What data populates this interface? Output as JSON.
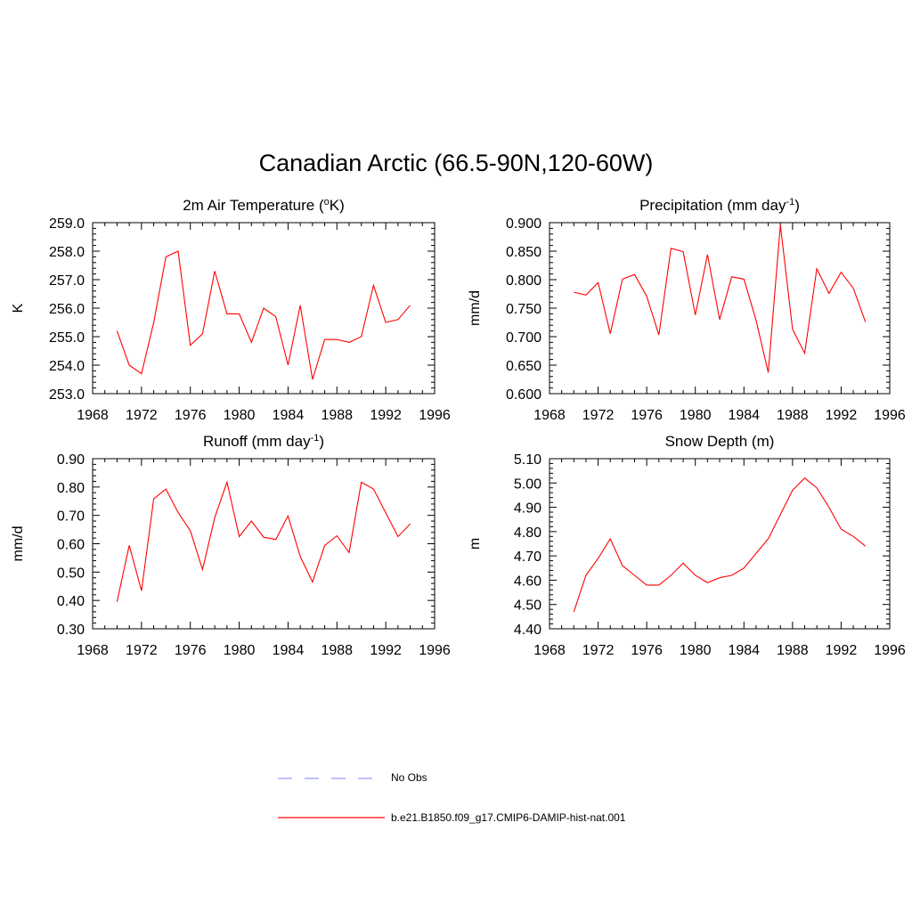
{
  "figure": {
    "title": "Canadian Arctic (66.5-90N,120-60W)"
  },
  "legend": {
    "items": [
      {
        "label": "No Obs",
        "color": "#9999ff",
        "style": "dashed"
      },
      {
        "label": "b.e21.B1850.f09_g17.CMIP6-DAMIP-hist-nat.001",
        "color": "#ff0000",
        "style": "solid"
      }
    ]
  },
  "chart_data": [
    {
      "type": "line",
      "title": "2m Air Temperature (°K)",
      "title_parts": [
        "2m Air Temperature (",
        "o",
        "K)"
      ],
      "xlabel": "",
      "ylabel": "K",
      "xlim": [
        1968,
        1996
      ],
      "ylim": [
        253.0,
        259.0
      ],
      "x_ticks": [
        "1968",
        "1972",
        "1976",
        "1980",
        "1984",
        "1988",
        "1992",
        "1996"
      ],
      "y_ticks": [
        "253.0",
        "254.0",
        "255.0",
        "256.0",
        "257.0",
        "258.0",
        "259.0"
      ],
      "x": [
        1970,
        1971,
        1972,
        1973,
        1974,
        1975,
        1976,
        1977,
        1978,
        1979,
        1980,
        1981,
        1982,
        1983,
        1984,
        1985,
        1986,
        1987,
        1988,
        1989,
        1990,
        1991,
        1992,
        1993,
        1994
      ],
      "series": [
        {
          "color": "#ff0000",
          "values": [
            255.2,
            254.0,
            253.7,
            255.5,
            257.8,
            258.0,
            254.7,
            255.1,
            257.3,
            255.8,
            255.8,
            254.8,
            256.0,
            255.7,
            254.0,
            256.1,
            253.5,
            254.9,
            254.9,
            254.8,
            255.0,
            256.8,
            255.5,
            255.6,
            256.1
          ]
        }
      ]
    },
    {
      "type": "line",
      "title": "Precipitation (mm day-1)",
      "title_parts": [
        "Precipitation (mm day",
        "-1",
        ")"
      ],
      "xlabel": "",
      "ylabel": "mm/d",
      "xlim": [
        1968,
        1996
      ],
      "ylim": [
        0.6,
        0.9
      ],
      "x_ticks": [
        "1968",
        "1972",
        "1976",
        "1980",
        "1984",
        "1988",
        "1992",
        "1996"
      ],
      "y_ticks": [
        "0.600",
        "0.650",
        "0.700",
        "0.750",
        "0.800",
        "0.850",
        "0.900"
      ],
      "x": [
        1970,
        1971,
        1972,
        1973,
        1974,
        1975,
        1976,
        1977,
        1978,
        1979,
        1980,
        1981,
        1982,
        1983,
        1984,
        1985,
        1986,
        1987,
        1988,
        1989,
        1990,
        1991,
        1992,
        1993,
        1994
      ],
      "series": [
        {
          "color": "#ff0000",
          "values": [
            0.778,
            0.773,
            0.795,
            0.705,
            0.801,
            0.809,
            0.771,
            0.703,
            0.855,
            0.849,
            0.738,
            0.844,
            0.73,
            0.805,
            0.801,
            0.729,
            0.637,
            0.896,
            0.713,
            0.671,
            0.819,
            0.776,
            0.813,
            0.785,
            0.726
          ]
        }
      ]
    },
    {
      "type": "line",
      "title": "Runoff (mm day-1)",
      "title_parts": [
        "Runoff (mm day",
        "-1",
        ")"
      ],
      "xlabel": "",
      "ylabel": "mm/d",
      "xlim": [
        1968,
        1996
      ],
      "ylim": [
        0.3,
        0.9
      ],
      "x_ticks": [
        "1968",
        "1972",
        "1976",
        "1980",
        "1984",
        "1988",
        "1992",
        "1996"
      ],
      "y_ticks": [
        "0.30",
        "0.40",
        "0.50",
        "0.60",
        "0.70",
        "0.80",
        "0.90"
      ],
      "x": [
        1970,
        1971,
        1972,
        1973,
        1974,
        1975,
        1976,
        1977,
        1978,
        1979,
        1980,
        1981,
        1982,
        1983,
        1984,
        1985,
        1986,
        1987,
        1988,
        1989,
        1990,
        1991,
        1992,
        1993,
        1994
      ],
      "series": [
        {
          "color": "#ff0000",
          "values": [
            0.395,
            0.594,
            0.434,
            0.758,
            0.793,
            0.71,
            0.646,
            0.509,
            0.692,
            0.817,
            0.625,
            0.68,
            0.623,
            0.615,
            0.698,
            0.555,
            0.465,
            0.594,
            0.628,
            0.569,
            0.817,
            0.793,
            0.709,
            0.625,
            0.67
          ]
        }
      ]
    },
    {
      "type": "line",
      "title": "Snow Depth (m)",
      "title_parts": [
        "Snow Depth (m)"
      ],
      "xlabel": "",
      "ylabel": "m",
      "xlim": [
        1968,
        1996
      ],
      "ylim": [
        4.4,
        5.1
      ],
      "x_ticks": [
        "1968",
        "1972",
        "1976",
        "1980",
        "1984",
        "1988",
        "1992",
        "1996"
      ],
      "y_ticks": [
        "4.40",
        "4.50",
        "4.60",
        "4.70",
        "4.80",
        "4.90",
        "5.00",
        "5.10"
      ],
      "x": [
        1970,
        1971,
        1972,
        1973,
        1974,
        1975,
        1976,
        1977,
        1978,
        1979,
        1980,
        1981,
        1982,
        1983,
        1984,
        1985,
        1986,
        1987,
        1988,
        1989,
        1990,
        1991,
        1992,
        1993,
        1994
      ],
      "series": [
        {
          "color": "#ff0000",
          "values": [
            4.47,
            4.62,
            4.69,
            4.77,
            4.66,
            4.62,
            4.58,
            4.58,
            4.62,
            4.67,
            4.62,
            4.59,
            4.61,
            4.62,
            4.65,
            4.71,
            4.77,
            4.87,
            4.97,
            5.02,
            4.98,
            4.9,
            4.81,
            4.78,
            4.74
          ]
        }
      ]
    }
  ]
}
